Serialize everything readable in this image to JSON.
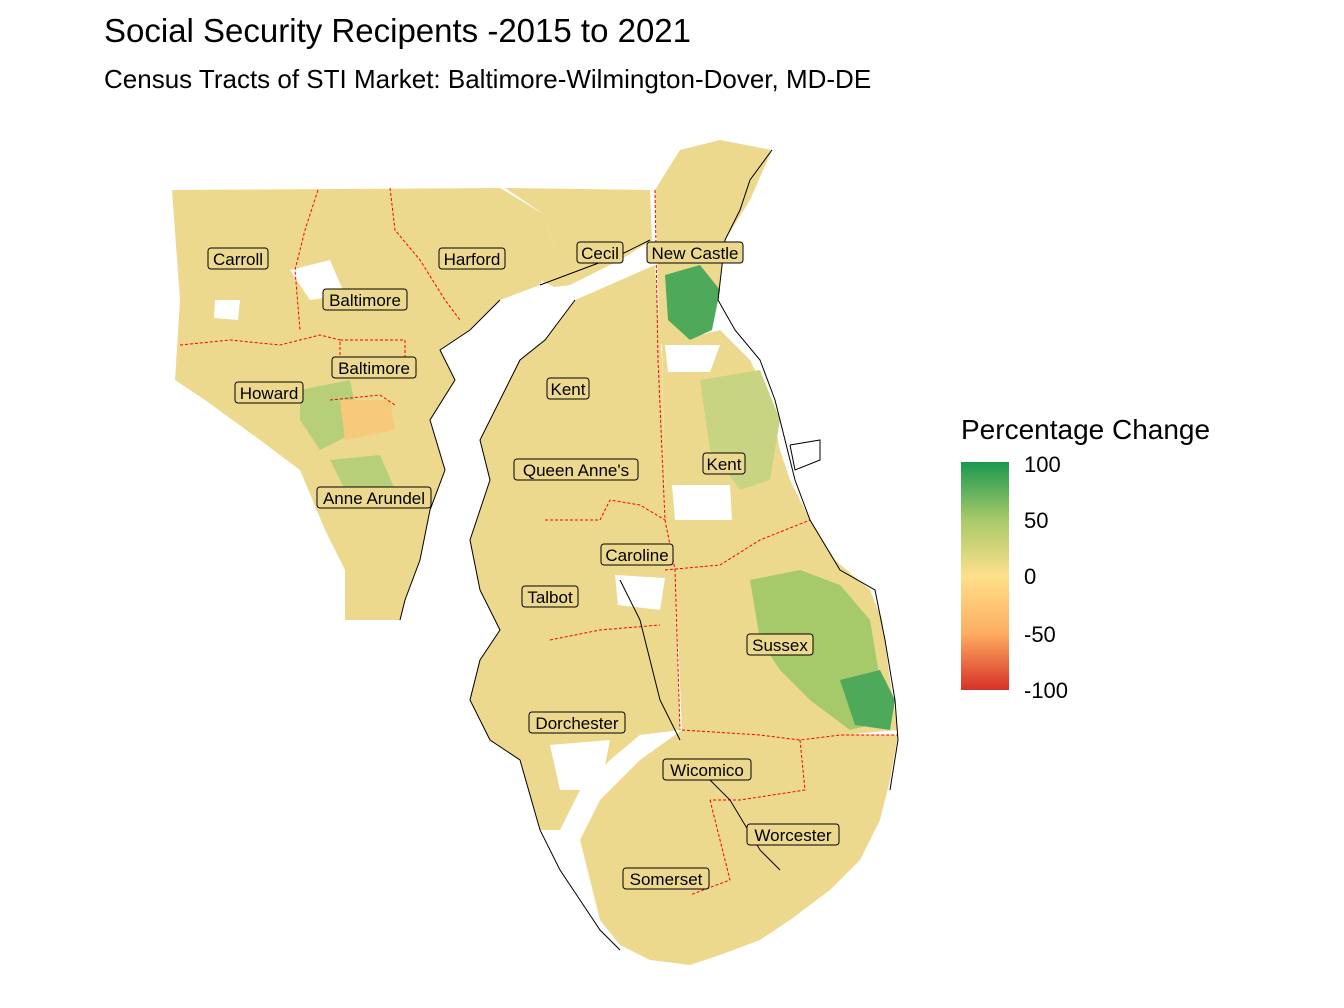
{
  "title": "Social Security Recipents -2015 to 2021",
  "subtitle": "Census Tracts of STI Market: Baltimore-Wilmington-Dover, MD-DE",
  "legend": {
    "title": "Percentage Change",
    "ticks": [
      "100",
      "50",
      "0",
      "-50",
      "-100"
    ],
    "colors": {
      "high": "#1a9850",
      "mid_high": "#a6c96a",
      "zero": "#fee08b",
      "mid_low": "#fdae61",
      "low": "#d73027"
    },
    "range": [
      -100,
      100
    ]
  },
  "counties": [
    {
      "name": "Carroll"
    },
    {
      "name": "Harford"
    },
    {
      "name": "Cecil"
    },
    {
      "name": "New Castle"
    },
    {
      "name": "Baltimore"
    },
    {
      "name": "Baltimore"
    },
    {
      "name": "Howard"
    },
    {
      "name": "Kent"
    },
    {
      "name": "Kent"
    },
    {
      "name": "Queen Anne's"
    },
    {
      "name": "Anne Arundel"
    },
    {
      "name": "Caroline"
    },
    {
      "name": "Talbot"
    },
    {
      "name": "Sussex"
    },
    {
      "name": "Dorchester"
    },
    {
      "name": "Wicomico"
    },
    {
      "name": "Worcester"
    },
    {
      "name": "Somerset"
    }
  ],
  "colors": {
    "land": "#ecd98e",
    "boundary": "#ff0000",
    "coast": "#000000",
    "green_light": "#b8cf7a",
    "green_mid": "#8cbf62",
    "green_dark": "#4ea95a",
    "orange": "#f7c97a"
  }
}
